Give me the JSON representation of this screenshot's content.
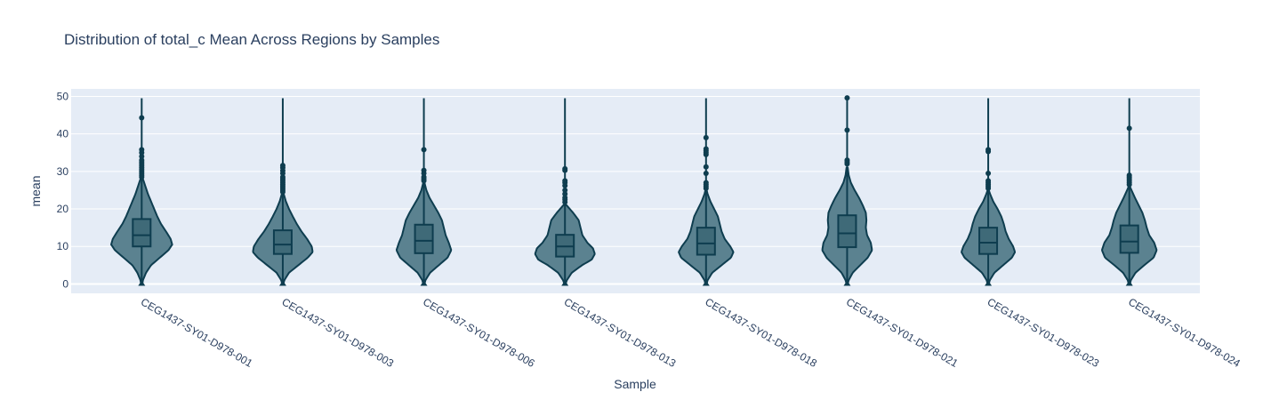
{
  "chart_data": {
    "type": "violin",
    "title": "Distribution of total_c Mean Across Regions by Samples",
    "xlabel": "Sample",
    "ylabel": "mean",
    "ylim": [
      -2.5,
      52
    ],
    "yticks": [
      0,
      10,
      20,
      30,
      40,
      50
    ],
    "grid": true,
    "legend": "none",
    "colors": {
      "fill": "#5b8290",
      "line": "#0e3d4f",
      "plot_bg": "#e5ecf6",
      "grid": "#ffffff",
      "text": "#2a3f5f"
    },
    "categories": [
      "CEG1437-SY01-D978-001",
      "CEG1437-SY01-D978-003",
      "CEG1437-SY01-D978-006",
      "CEG1437-SY01-D978-013",
      "CEG1437-SY01-D978-018",
      "CEG1437-SY01-D978-021",
      "CEG1437-SY01-D978-023",
      "CEG1437-SY01-D978-024"
    ],
    "series": [
      {
        "min": 0,
        "q1": 10,
        "median": 13,
        "q3": 17.3,
        "whisker_high": 49.5,
        "violin_max": 28,
        "density": [
          [
            0,
            0.02
          ],
          [
            1,
            0.04
          ],
          [
            3,
            0.14
          ],
          [
            5,
            0.3
          ],
          [
            7,
            0.58
          ],
          [
            9,
            0.86
          ],
          [
            10.5,
            0.98
          ],
          [
            12,
            0.93
          ],
          [
            14,
            0.78
          ],
          [
            16,
            0.62
          ],
          [
            18,
            0.5
          ],
          [
            20,
            0.4
          ],
          [
            22,
            0.3
          ],
          [
            24,
            0.2
          ],
          [
            26,
            0.12
          ],
          [
            28,
            0.04
          ]
        ],
        "outliers": [
          28.5,
          29,
          29.5,
          30,
          30.5,
          31,
          31.5,
          32,
          32.5,
          33,
          34,
          35,
          35.8,
          44.3
        ]
      },
      {
        "min": 0,
        "q1": 8,
        "median": 10.5,
        "q3": 14.3,
        "whisker_high": 49.5,
        "violin_max": 24,
        "density": [
          [
            0,
            0.02
          ],
          [
            1,
            0.05
          ],
          [
            3,
            0.2
          ],
          [
            5,
            0.5
          ],
          [
            7,
            0.8
          ],
          [
            8.5,
            0.96
          ],
          [
            10,
            0.93
          ],
          [
            12,
            0.78
          ],
          [
            14,
            0.6
          ],
          [
            16,
            0.45
          ],
          [
            18,
            0.32
          ],
          [
            20,
            0.2
          ],
          [
            22,
            0.1
          ],
          [
            24,
            0.03
          ]
        ],
        "outliers": [
          24.5,
          25,
          25.5,
          26,
          26.5,
          27,
          27.5,
          28,
          28.5,
          29.5,
          30.2,
          31,
          31.6
        ]
      },
      {
        "min": 0,
        "q1": 8.2,
        "median": 11.5,
        "q3": 15.8,
        "whisker_high": 49.5,
        "violin_max": 27,
        "density": [
          [
            0,
            0.02
          ],
          [
            1,
            0.05
          ],
          [
            3,
            0.2
          ],
          [
            5,
            0.48
          ],
          [
            7,
            0.76
          ],
          [
            9,
            0.88
          ],
          [
            11,
            0.8
          ],
          [
            13,
            0.7
          ],
          [
            15,
            0.64
          ],
          [
            17,
            0.58
          ],
          [
            19,
            0.46
          ],
          [
            21,
            0.32
          ],
          [
            23,
            0.18
          ],
          [
            25,
            0.08
          ],
          [
            27,
            0.02
          ]
        ],
        "outliers": [
          27.5,
          28,
          28.5,
          29.5,
          30.3,
          35.8
        ]
      },
      {
        "min": 0,
        "q1": 7.3,
        "median": 10,
        "q3": 13.1,
        "whisker_high": 49.5,
        "violin_max": 21,
        "density": [
          [
            0,
            0.02
          ],
          [
            1,
            0.06
          ],
          [
            3,
            0.22
          ],
          [
            5,
            0.55
          ],
          [
            6.5,
            0.86
          ],
          [
            8,
            0.96
          ],
          [
            9.5,
            0.9
          ],
          [
            11,
            0.72
          ],
          [
            13,
            0.56
          ],
          [
            15,
            0.5
          ],
          [
            17,
            0.44
          ],
          [
            19,
            0.26
          ],
          [
            21,
            0.05
          ]
        ],
        "outliers": [
          21.8,
          22.5,
          23,
          24,
          25,
          26.2,
          27,
          27.5,
          30.3,
          30.7
        ]
      },
      {
        "min": 0,
        "q1": 7.8,
        "median": 10.8,
        "q3": 15,
        "whisker_high": 49.5,
        "violin_max": 25,
        "density": [
          [
            0,
            0.02
          ],
          [
            1,
            0.05
          ],
          [
            3,
            0.2
          ],
          [
            5,
            0.5
          ],
          [
            7,
            0.8
          ],
          [
            8.5,
            0.88
          ],
          [
            10,
            0.78
          ],
          [
            12,
            0.6
          ],
          [
            14,
            0.5
          ],
          [
            16,
            0.44
          ],
          [
            18,
            0.38
          ],
          [
            20,
            0.26
          ],
          [
            22,
            0.14
          ],
          [
            24,
            0.05
          ],
          [
            25,
            0.02
          ]
        ],
        "outliers": [
          25.5,
          26,
          26.5,
          27,
          29.5,
          31.2,
          34.5,
          35,
          35.5,
          36,
          39
        ]
      },
      {
        "min": 0,
        "q1": 9.8,
        "median": 13.5,
        "q3": 18.3,
        "whisker_high": 49.5,
        "violin_max": 31,
        "density": [
          [
            0,
            0.02
          ],
          [
            1,
            0.05
          ],
          [
            3,
            0.18
          ],
          [
            5,
            0.42
          ],
          [
            7,
            0.66
          ],
          [
            9,
            0.8
          ],
          [
            11,
            0.76
          ],
          [
            13,
            0.64
          ],
          [
            15,
            0.6
          ],
          [
            17,
            0.62
          ],
          [
            19,
            0.6
          ],
          [
            21,
            0.5
          ],
          [
            23,
            0.38
          ],
          [
            25,
            0.24
          ],
          [
            27,
            0.12
          ],
          [
            29,
            0.05
          ],
          [
            31,
            0.02
          ]
        ],
        "outliers": [
          32,
          32.5,
          33,
          41,
          49.6
        ]
      },
      {
        "min": 0,
        "q1": 8,
        "median": 11,
        "q3": 15,
        "whisker_high": 49.5,
        "violin_max": 25,
        "density": [
          [
            0,
            0.02
          ],
          [
            1,
            0.05
          ],
          [
            3,
            0.2
          ],
          [
            5,
            0.48
          ],
          [
            7,
            0.76
          ],
          [
            8.5,
            0.86
          ],
          [
            10,
            0.8
          ],
          [
            12,
            0.66
          ],
          [
            14,
            0.56
          ],
          [
            16,
            0.5
          ],
          [
            18,
            0.42
          ],
          [
            20,
            0.3
          ],
          [
            22,
            0.16
          ],
          [
            24,
            0.06
          ],
          [
            25,
            0.02
          ]
        ],
        "outliers": [
          25.5,
          26,
          26.5,
          27,
          27.5,
          29.5,
          35.3,
          35.8
        ]
      },
      {
        "min": 0,
        "q1": 8.3,
        "median": 11.3,
        "q3": 15.6,
        "whisker_high": 49.5,
        "violin_max": 26,
        "density": [
          [
            0,
            0.02
          ],
          [
            1,
            0.05
          ],
          [
            3,
            0.2
          ],
          [
            5,
            0.48
          ],
          [
            7,
            0.78
          ],
          [
            9,
            0.88
          ],
          [
            11,
            0.8
          ],
          [
            13,
            0.64
          ],
          [
            15,
            0.56
          ],
          [
            17,
            0.5
          ],
          [
            19,
            0.42
          ],
          [
            21,
            0.3
          ],
          [
            23,
            0.18
          ],
          [
            25,
            0.07
          ],
          [
            26,
            0.02
          ]
        ],
        "outliers": [
          26.5,
          27,
          27.5,
          28,
          28.5,
          29,
          41.5
        ]
      }
    ]
  }
}
